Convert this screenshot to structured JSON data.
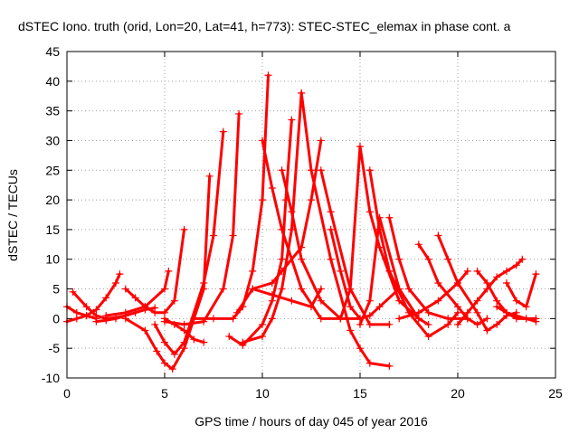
{
  "chart_data": {
    "type": "scatter",
    "title": "dSTEC Iono. truth (orid, Lon=20, Lat=41, h=773): STEC-STEC_elemax in phase cont. a",
    "xlabel": "GPS time / hours of day 045 of year 2016",
    "ylabel": "dSTEC  / TECUs",
    "xlim": [
      0,
      25
    ],
    "ylim": [
      -10,
      45
    ],
    "xticks": [
      0,
      5,
      10,
      15,
      20,
      25
    ],
    "yticks": [
      -10,
      -5,
      0,
      5,
      10,
      15,
      20,
      25,
      30,
      35,
      40,
      45
    ],
    "grid": true,
    "series_color": "#ff0000",
    "marker": "plus",
    "series": [
      {
        "x": [
          0.0,
          0.5,
          1.0,
          1.5,
          2.0,
          2.5,
          2.7
        ],
        "y": [
          -0.5,
          0.0,
          0.5,
          1.5,
          3.5,
          6.0,
          7.5
        ]
      },
      {
        "x": [
          0.0,
          0.5,
          1.0,
          1.5
        ],
        "y": [
          2.0,
          1.0,
          0.5,
          0.0
        ]
      },
      {
        "x": [
          0.3,
          1.0,
          1.5,
          2.0,
          2.5,
          3.0
        ],
        "y": [
          4.5,
          2.0,
          0.5,
          0.0,
          0.2,
          0.5
        ]
      },
      {
        "x": [
          1.5,
          2.0,
          2.5,
          3.0,
          3.5,
          4.0,
          4.5
        ],
        "y": [
          -0.5,
          -0.3,
          0.0,
          0.5,
          1.0,
          1.5,
          1.8
        ]
      },
      {
        "x": [
          3.0,
          3.5,
          4.0,
          4.5,
          5.0,
          5.5,
          6.0
        ],
        "y": [
          5.0,
          3.5,
          2.0,
          1.0,
          1.0,
          3.0,
          15.0
        ]
      },
      {
        "x": [
          2.0,
          3.0,
          4.0,
          5.0,
          5.2
        ],
        "y": [
          0.5,
          1.0,
          2.0,
          5.0,
          8.0
        ]
      },
      {
        "x": [
          3.0,
          4.0,
          4.6,
          5.0,
          5.4,
          6.0,
          7.0,
          7.3
        ],
        "y": [
          0.0,
          -2.0,
          -5.5,
          -7.5,
          -8.5,
          -5.0,
          5.0,
          24.0
        ]
      },
      {
        "x": [
          4.5,
          5.0,
          5.5,
          6.0,
          7.0,
          7.5,
          8.0
        ],
        "y": [
          -1.0,
          -4.0,
          -6.0,
          -4.0,
          6.0,
          14.0,
          31.5
        ]
      },
      {
        "x": [
          5.0,
          6.0,
          7.0,
          8.0,
          8.5,
          8.8
        ],
        "y": [
          -0.5,
          -1.0,
          -0.5,
          5.0,
          14.0,
          34.5
        ]
      },
      {
        "x": [
          5.0,
          5.5,
          6.0,
          6.5,
          7.0
        ],
        "y": [
          0.0,
          -1.0,
          -2.0,
          -3.5,
          -4.0
        ]
      },
      {
        "x": [
          6.5,
          7.5,
          8.5,
          9.0,
          9.5,
          10.0,
          10.3
        ],
        "y": [
          0.0,
          0.0,
          0.0,
          2.0,
          8.0,
          20.0,
          41.0
        ]
      },
      {
        "x": [
          8.3,
          9.0,
          10.0,
          10.5,
          11.0,
          11.2,
          11.5
        ],
        "y": [
          -3.0,
          -4.5,
          -1.0,
          3.0,
          10.0,
          20.0,
          33.5
        ]
      },
      {
        "x": [
          9.0,
          10.0,
          10.5,
          11.0,
          11.5,
          12.0
        ],
        "y": [
          -4.0,
          -3.0,
          0.0,
          5.0,
          15.0,
          38.0
        ]
      },
      {
        "x": [
          8.7,
          9.5,
          10.5,
          11.0,
          12.0,
          12.5,
          13.0
        ],
        "y": [
          1.0,
          5.0,
          6.0,
          8.0,
          12.0,
          20.0,
          30.0
        ]
      },
      {
        "x": [
          9.5,
          10.5,
          11.5,
          12.5,
          13.0
        ],
        "y": [
          5.0,
          4.0,
          3.0,
          2.0,
          5.0
        ]
      },
      {
        "x": [
          10.0,
          10.5,
          11.0,
          12.0,
          13.0,
          14.0
        ],
        "y": [
          30.0,
          22.0,
          15.0,
          5.0,
          0.0,
          0.0
        ]
      },
      {
        "x": [
          11.0,
          11.5,
          12.0,
          13.0,
          14.0,
          15.0
        ],
        "y": [
          25.0,
          18.0,
          10.0,
          3.0,
          0.0,
          0.0
        ]
      },
      {
        "x": [
          12.0,
          12.5,
          13.5,
          14.5,
          15.0,
          15.5,
          16.5
        ],
        "y": [
          38.0,
          25.0,
          10.0,
          -2.0,
          -5.0,
          -7.5,
          -8.0
        ]
      },
      {
        "x": [
          13.0,
          13.5,
          14.5,
          15.5,
          16.5
        ],
        "y": [
          25.0,
          18.0,
          5.0,
          -1.0,
          -1.0
        ]
      },
      {
        "x": [
          13.5,
          14.0,
          14.5,
          15.0,
          15.5,
          16.0,
          17.0
        ],
        "y": [
          15.0,
          8.0,
          2.0,
          0.0,
          0.5,
          2.0,
          5.0
        ]
      },
      {
        "x": [
          14.0,
          14.5,
          15.0,
          15.5,
          16.0,
          17.0,
          18.0
        ],
        "y": [
          0.0,
          5.0,
          29.0,
          18.0,
          12.0,
          3.0,
          0.0
        ]
      },
      {
        "x": [
          15.0,
          15.5,
          16.0,
          17.0,
          18.0,
          18.5
        ],
        "y": [
          -1.0,
          3.0,
          17.0,
          5.0,
          0.0,
          -1.0
        ]
      },
      {
        "x": [
          15.5,
          16.0,
          16.5,
          17.5,
          18.5,
          19.5,
          20.0
        ],
        "y": [
          25.0,
          15.0,
          8.0,
          1.0,
          -3.0,
          -1.0,
          1.0
        ]
      },
      {
        "x": [
          16.5,
          17.0,
          17.5,
          18.5,
          19.5,
          20.5
        ],
        "y": [
          17.0,
          10.0,
          5.0,
          1.0,
          0.0,
          0.0
        ]
      },
      {
        "x": [
          17.0,
          18.0,
          19.0,
          20.0,
          20.5
        ],
        "y": [
          0.0,
          1.0,
          3.0,
          6.0,
          8.0
        ]
      },
      {
        "x": [
          18.0,
          18.5,
          19.0,
          20.0,
          20.5,
          21.0,
          21.5
        ],
        "y": [
          12.5,
          10.0,
          6.0,
          2.0,
          0.0,
          -1.0,
          0.0
        ]
      },
      {
        "x": [
          19.0,
          19.5,
          20.0,
          21.0,
          21.5,
          22.0,
          22.5,
          23.0
        ],
        "y": [
          14.0,
          10.0,
          6.0,
          1.0,
          -2.0,
          -1.0,
          0.5,
          1.0
        ]
      },
      {
        "x": [
          20.0,
          20.5,
          21.0,
          21.5,
          22.0,
          22.5,
          23.0,
          23.3
        ],
        "y": [
          -1.0,
          1.0,
          3.0,
          5.0,
          7.0,
          8.0,
          9.0,
          10.0
        ]
      },
      {
        "x": [
          21.0,
          21.5,
          22.0,
          22.5,
          23.0,
          23.5,
          24.0
        ],
        "y": [
          8.0,
          6.0,
          3.0,
          1.0,
          0.0,
          0.0,
          -0.5
        ]
      },
      {
        "x": [
          22.5,
          23.0,
          23.5,
          24.0
        ],
        "y": [
          6.0,
          3.0,
          2.0,
          7.5
        ]
      },
      {
        "x": [
          22.0,
          22.5,
          23.0,
          23.5,
          24.0
        ],
        "y": [
          2.0,
          1.0,
          0.5,
          0.0,
          0.0
        ]
      }
    ]
  }
}
